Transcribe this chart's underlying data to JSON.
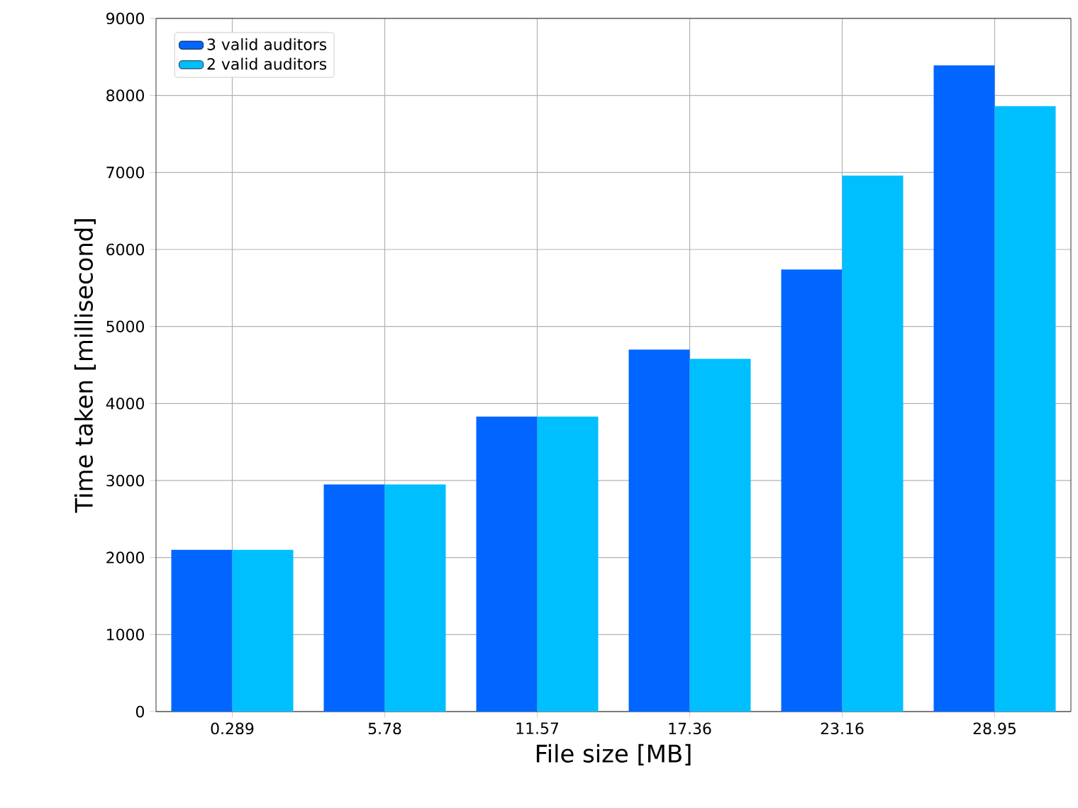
{
  "chart_data": {
    "type": "bar",
    "xlabel": "File size [MB]",
    "ylabel": "Time taken [millisecond]",
    "categories": [
      "0.289",
      "5.78",
      "11.57",
      "17.36",
      "23.16",
      "28.95"
    ],
    "series": [
      {
        "name": "3 valid auditors",
        "color": "#0066ff",
        "values": [
          2100,
          2950,
          3830,
          4700,
          5740,
          8390
        ]
      },
      {
        "name": "2 valid auditors",
        "color": "#00bfff",
        "values": [
          2100,
          2950,
          3830,
          4580,
          6960,
          7860
        ]
      }
    ],
    "ylim": [
      0,
      9000
    ],
    "yticks": [
      0,
      1000,
      2000,
      3000,
      4000,
      5000,
      6000,
      7000,
      8000,
      9000
    ],
    "grid": true,
    "legend": "top left"
  }
}
